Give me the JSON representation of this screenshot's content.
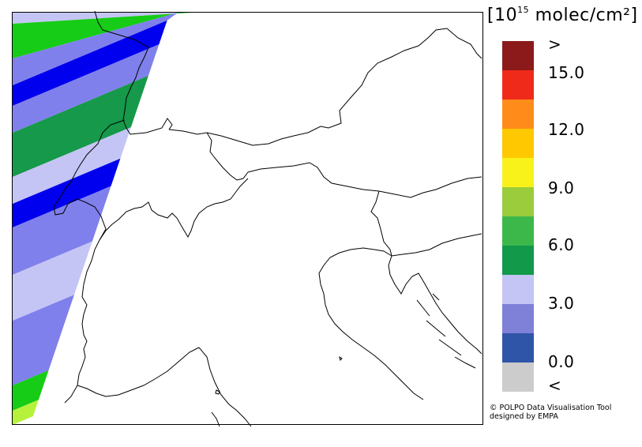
{
  "legend": {
    "unit_prefix": "10",
    "unit_exponent": "15",
    "unit_suffix": "molec/cm²",
    "bins": [
      {
        "label": "<",
        "color": "#cccccc"
      },
      {
        "label": "0.0",
        "color": "#2f55a8"
      },
      {
        "label": "",
        "color": "#7f80d8"
      },
      {
        "label": "3.0",
        "color": "#c4c5f4"
      },
      {
        "label": "",
        "color": "#12994a"
      },
      {
        "label": "6.0",
        "color": "#3cb84a"
      },
      {
        "label": "",
        "color": "#9bcc3c"
      },
      {
        "label": "9.0",
        "color": "#f8f21a"
      },
      {
        "label": "",
        "color": "#ffc800"
      },
      {
        "label": "12.0",
        "color": "#ff8c1a"
      },
      {
        "label": "",
        "color": "#f02a1a"
      },
      {
        "label": "15.0",
        "color": "#8c1a1a"
      },
      {
        "label": ">",
        "color": "#8c1a1a"
      }
    ],
    "scale_labels": [
      ">",
      "15.0",
      "12.0",
      "9.0",
      "6.0",
      "3.0",
      "0.0",
      "<"
    ]
  },
  "swath": {
    "stripes": [
      {
        "color": "#7f80ec"
      },
      {
        "color": "#c4c5f4"
      },
      {
        "color": "#16cc16"
      },
      {
        "color": "#7f80ec"
      },
      {
        "color": "#0000ee"
      },
      {
        "color": "#7f80ec"
      },
      {
        "color": "#16994a"
      },
      {
        "color": "#c4c5f4"
      },
      {
        "color": "#0000ee"
      },
      {
        "color": "#7f80ec"
      },
      {
        "color": "#c4c5f4"
      },
      {
        "color": "#7f80ec"
      },
      {
        "color": "#16cc16"
      },
      {
        "color": "#b6f23c"
      }
    ]
  },
  "credit": {
    "line1": "© POLPO Data Visualisation Tool",
    "line2": "designed by EMPA"
  }
}
